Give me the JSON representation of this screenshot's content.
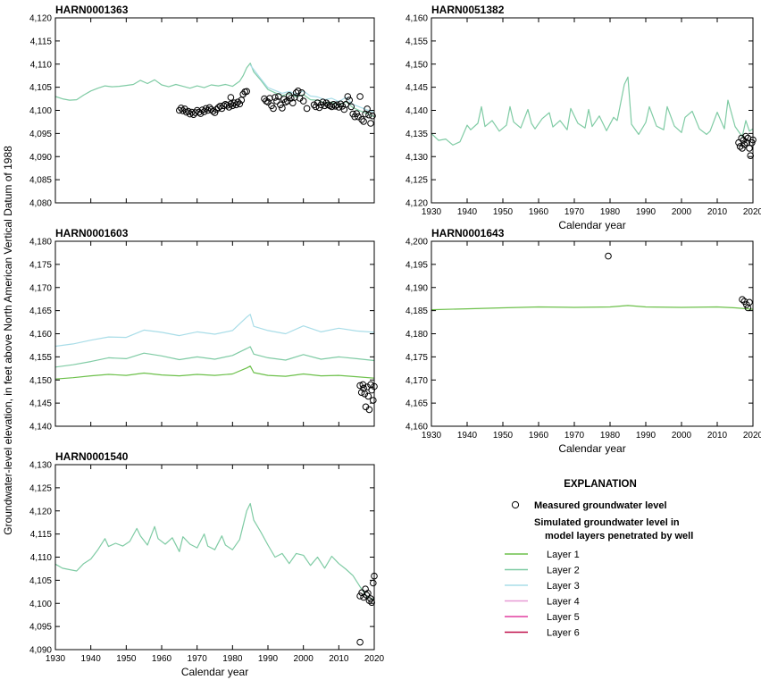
{
  "ylabel": "Groundwater-level elevation, in feet above North American Vertical Datum of 1988",
  "xlabel": "Calendar year",
  "explanation": {
    "title": "EXPLANATION",
    "measured_label": "Measured groundwater level",
    "simulated_label_line1": "Simulated groundwater level in",
    "simulated_label_line2": "model layers penetrated by well",
    "layers": [
      {
        "name": "Layer 1",
        "color": "#6cc04a"
      },
      {
        "name": "Layer 2",
        "color": "#7fcba4"
      },
      {
        "name": "Layer 3",
        "color": "#a9dde8"
      },
      {
        "name": "Layer 4",
        "color": "#e79ad6"
      },
      {
        "name": "Layer 5",
        "color": "#e23fa0"
      },
      {
        "name": "Layer 6",
        "color": "#c0104a"
      }
    ]
  },
  "chart_data": [
    {
      "type": "line",
      "title": "HARN0001363",
      "xlim": [
        1930,
        2020
      ],
      "ylim": [
        4080,
        4120
      ],
      "xticks": [
        1930,
        1940,
        1950,
        1960,
        1970,
        1980,
        1990,
        2000,
        2010,
        2020
      ],
      "yticks": [
        4080,
        4085,
        4090,
        4095,
        4100,
        4105,
        4110,
        4115,
        4120
      ],
      "series": [
        {
          "name": "Layer 2",
          "color": "#7fcba4",
          "x": [
            1930,
            1932,
            1934,
            1936,
            1938,
            1940,
            1942,
            1944,
            1946,
            1948,
            1950,
            1952,
            1954,
            1956,
            1958,
            1960,
            1962,
            1964,
            1966,
            1968,
            1970,
            1972,
            1974,
            1976,
            1978,
            1980,
            1982,
            1983,
            1984,
            1985,
            1986,
            1988,
            1990,
            1992,
            1994,
            1996,
            1998,
            2000,
            2002,
            2004,
            2006,
            2008,
            2010,
            2012,
            2014,
            2016,
            2018,
            2020
          ],
          "y": [
            4103,
            4102.5,
            4102.2,
            4102.3,
            4103.3,
            4104.2,
            4104.8,
            4105.3,
            4105.1,
            4105.2,
            4105.4,
            4105.6,
            4106.5,
            4105.8,
            4106.6,
            4105.5,
            4105.1,
            4105.6,
            4105.2,
            4104.8,
            4105.3,
            4104.9,
            4105.5,
            4105.3,
            4105.6,
            4105.2,
            4106.3,
            4107.5,
            4109.2,
            4110.2,
            4108.3,
            4106.5,
            4104.5,
            4103.8,
            4103.2,
            4103.6,
            4102.9,
            4103.4,
            4102.3,
            4102.2,
            4101.6,
            4101.8,
            4101.1,
            4101.9,
            4100.6,
            4099.9,
            4099.3,
            4098.6
          ]
        },
        {
          "name": "Layer 3",
          "color": "#a9dde8",
          "x": [
            1985,
            1988,
            1990,
            1992,
            1994,
            1996,
            1998,
            2000,
            2002,
            2004,
            2006,
            2008,
            2010,
            2012,
            2014,
            2016,
            2018,
            2020
          ],
          "y": [
            4109.8,
            4106.8,
            4104.9,
            4104.3,
            4103.7,
            4104.1,
            4103.5,
            4104.2,
            4103.1,
            4102.9,
            4102.3,
            4102.6,
            4101.9,
            4102.8,
            4101.3,
            4100.7,
            4100.1,
            4099.6
          ]
        }
      ],
      "measured": {
        "x": [
          1965.0,
          1965.5,
          1966.0,
          1966.5,
          1967.0,
          1967.5,
          1968.0,
          1968.5,
          1969.0,
          1969.5,
          1970.0,
          1970.5,
          1971.0,
          1971.5,
          1972.0,
          1972.5,
          1973.0,
          1973.5,
          1974.0,
          1974.5,
          1975.0,
          1975.5,
          1976.0,
          1976.5,
          1977.0,
          1977.5,
          1978.0,
          1978.5,
          1979.0,
          1979.5,
          1980.0,
          1980.5,
          1981.0,
          1981.5,
          1982.0,
          1982.5,
          1983.0,
          1983.5,
          1984.0,
          1979.5,
          1989.0,
          1989.5,
          1990.0,
          1990.5,
          1991.0,
          1991.5,
          1992.0,
          1992.5,
          1993.0,
          1993.5,
          1994.0,
          1994.5,
          1995.0,
          1995.5,
          1996.0,
          1996.5,
          1997.0,
          1997.5,
          1998.0,
          1998.5,
          1999.0,
          1999.5,
          2000.0,
          2001.0,
          2003.0,
          2003.5,
          2004.0,
          2004.5,
          2005.0,
          2005.5,
          2006.0,
          2006.5,
          2007.0,
          2007.5,
          2008.0,
          2008.5,
          2009.0,
          2009.5,
          2010.0,
          2010.5,
          2011.0,
          2011.5,
          2012.0,
          2012.5,
          2013.0,
          2013.5,
          2014.0,
          2014.5,
          2015.0,
          2015.5,
          2016.0,
          2016.5,
          2017.0,
          2017.5,
          2018.0,
          2018.5,
          2019.0,
          2019.5
        ],
        "y": [
          4100.0,
          4100.5,
          4099.9,
          4100.3,
          4099.6,
          4099.8,
          4099.2,
          4099.6,
          4099.1,
          4099.5,
          4100.0,
          4099.6,
          4099.3,
          4100.1,
          4099.7,
          4100.4,
          4100.0,
          4100.6,
          4100.2,
          4099.8,
          4099.5,
          4100.2,
          4100.6,
          4100.9,
          4100.4,
          4101.0,
          4101.3,
          4101.1,
          4100.7,
          4101.4,
          4101.0,
          4101.6,
          4101.2,
          4101.8,
          4101.4,
          4102.2,
          4103.5,
          4104.0,
          4104.1,
          4102.8,
          4102.5,
          4102.0,
          4101.8,
          4102.6,
          4101.0,
          4100.4,
          4102.8,
          4102.0,
          4103.0,
          4101.2,
          4100.5,
          4102.4,
          4101.8,
          4102.0,
          4103.2,
          4102.6,
          4101.6,
          4102.8,
          4103.8,
          4104.2,
          4102.6,
          4103.8,
          4102.0,
          4100.4,
          4101.2,
          4100.8,
          4101.6,
          4100.6,
          4101.2,
          4101.8,
          4101.0,
          4101.6,
          4101.2,
          4101.0,
          4100.8,
          4101.3,
          4100.9,
          4101.2,
          4100.7,
          4101.4,
          4100.9,
          4100.2,
          4101.3,
          4103.0,
          4102.2,
          4100.8,
          4099.2,
          4098.6,
          4099.3,
          4098.6,
          4103.0,
          4098.0,
          4097.6,
          4099.2,
          4100.3,
          4099.0,
          4097.2,
          4098.8
        ]
      }
    },
    {
      "type": "line",
      "title": "HARN0051382",
      "xlim": [
        1930,
        2020
      ],
      "ylim": [
        4120,
        4160
      ],
      "xticks": [
        1930,
        1940,
        1950,
        1960,
        1970,
        1980,
        1990,
        2000,
        2010,
        2020
      ],
      "yticks": [
        4120,
        4125,
        4130,
        4135,
        4140,
        4145,
        4150,
        4155,
        4160
      ],
      "series": [
        {
          "name": "Layer 2",
          "color": "#7fcba4",
          "x": [
            1930,
            1932,
            1934,
            1936,
            1938,
            1940,
            1941,
            1943,
            1944,
            1945,
            1947,
            1949,
            1951,
            1952,
            1953,
            1955,
            1957,
            1958,
            1959,
            1961,
            1963,
            1964,
            1966,
            1968,
            1969,
            1971,
            1973,
            1974,
            1975,
            1977,
            1979,
            1981,
            1982,
            1984,
            1985,
            1986,
            1988,
            1990,
            1991,
            1993,
            1995,
            1996,
            1998,
            2000,
            2001,
            2003,
            2005,
            2007,
            2008,
            2010,
            2012,
            2013,
            2015,
            2017,
            2018,
            2019,
            2020
          ],
          "y": [
            4135.0,
            4133.5,
            4133.8,
            4132.5,
            4133.2,
            4136.8,
            4135.8,
            4137.2,
            4140.8,
            4136.5,
            4137.8,
            4135.5,
            4136.8,
            4140.8,
            4137.5,
            4136.2,
            4140.2,
            4137.2,
            4136.0,
            4138.2,
            4139.5,
            4136.4,
            4137.8,
            4135.8,
            4140.4,
            4137.2,
            4136.2,
            4140.2,
            4136.5,
            4138.8,
            4135.6,
            4138.5,
            4137.8,
            4145.6,
            4147.2,
            4137.0,
            4134.8,
            4137.4,
            4140.8,
            4136.6,
            4135.8,
            4140.8,
            4136.6,
            4135.2,
            4138.5,
            4139.8,
            4136.0,
            4134.8,
            4135.5,
            4139.6,
            4136.0,
            4142.2,
            4136.5,
            4134.3,
            4137.8,
            4135.5,
            4136.0
          ]
        }
      ],
      "measured": {
        "x": [
          2016.0,
          2016.4,
          2016.8,
          2017.0,
          2017.3,
          2017.6,
          2018.0,
          2018.3,
          2018.6,
          2019.0,
          2019.3,
          2019.7,
          2020.0
        ],
        "y": [
          4133.0,
          4132.2,
          4134.0,
          4131.8,
          4133.5,
          4132.6,
          4134.4,
          4133.0,
          4134.0,
          4131.8,
          4130.2,
          4133.0,
          4133.6
        ]
      }
    },
    {
      "type": "line",
      "title": "HARN0001603",
      "xlim": [
        1930,
        2020
      ],
      "ylim": [
        4140,
        4180
      ],
      "xticks": [
        1930,
        1940,
        1950,
        1960,
        1970,
        1980,
        1990,
        2000,
        2010,
        2020
      ],
      "yticks": [
        4140,
        4145,
        4150,
        4155,
        4160,
        4165,
        4170,
        4175,
        4180
      ],
      "series": [
        {
          "name": "Layer 1",
          "color": "#6cc04a",
          "x": [
            1930,
            1935,
            1940,
            1945,
            1950,
            1955,
            1960,
            1965,
            1970,
            1975,
            1980,
            1984,
            1985,
            1986,
            1990,
            1995,
            2000,
            2005,
            2010,
            2015,
            2020
          ],
          "y": [
            4150.2,
            4150.5,
            4150.9,
            4151.2,
            4151.0,
            4151.5,
            4151.1,
            4150.9,
            4151.2,
            4151.0,
            4151.3,
            4152.6,
            4153.0,
            4151.6,
            4151.0,
            4150.8,
            4151.3,
            4150.9,
            4151.0,
            4150.7,
            4150.4
          ]
        },
        {
          "name": "Layer 2",
          "color": "#7fcba4",
          "x": [
            1930,
            1935,
            1940,
            1945,
            1950,
            1955,
            1960,
            1965,
            1970,
            1975,
            1980,
            1984,
            1985,
            1986,
            1990,
            1995,
            2000,
            2005,
            2010,
            2015,
            2020
          ],
          "y": [
            4152.8,
            4153.3,
            4154.0,
            4154.8,
            4154.6,
            4155.8,
            4155.2,
            4154.4,
            4155.0,
            4154.5,
            4155.3,
            4156.8,
            4157.2,
            4155.6,
            4154.8,
            4154.3,
            4155.5,
            4154.5,
            4155.0,
            4154.6,
            4154.2
          ]
        },
        {
          "name": "Layer 3",
          "color": "#a9dde8",
          "x": [
            1930,
            1935,
            1940,
            1945,
            1950,
            1955,
            1960,
            1965,
            1970,
            1975,
            1980,
            1984,
            1985,
            1986,
            1990,
            1995,
            2000,
            2005,
            2010,
            2015,
            2020
          ],
          "y": [
            4157.3,
            4157.8,
            4158.6,
            4159.3,
            4159.2,
            4160.8,
            4160.3,
            4159.6,
            4160.4,
            4159.9,
            4160.7,
            4163.6,
            4164.2,
            4161.6,
            4160.7,
            4160.0,
            4161.7,
            4160.4,
            4161.2,
            4160.6,
            4160.3
          ]
        }
      ],
      "measured": {
        "x": [
          2016.0,
          2016.4,
          2016.8,
          2017.0,
          2017.3,
          2017.6,
          2018.0,
          2018.3,
          2018.6,
          2019.0,
          2019.3,
          2019.7,
          2020.0
        ],
        "y": [
          4148.8,
          4147.3,
          4149.0,
          4148.2,
          4147.0,
          4144.2,
          4148.5,
          4146.5,
          4143.6,
          4149.0,
          4147.8,
          4145.6,
          4148.6
        ]
      }
    },
    {
      "type": "line",
      "title": "HARN0001643",
      "xlim": [
        1930,
        2020
      ],
      "ylim": [
        4160,
        4200
      ],
      "xticks": [
        1930,
        1940,
        1950,
        1960,
        1970,
        1980,
        1990,
        2000,
        2010,
        2020
      ],
      "yticks": [
        4160,
        4165,
        4170,
        4175,
        4180,
        4185,
        4190,
        4195,
        4200
      ],
      "series": [
        {
          "name": "Layer 1",
          "color": "#6cc04a",
          "x": [
            1930,
            1940,
            1950,
            1960,
            1970,
            1980,
            1985,
            1990,
            2000,
            2010,
            2015,
            2020
          ],
          "y": [
            4185.2,
            4185.4,
            4185.6,
            4185.8,
            4185.7,
            4185.8,
            4186.1,
            4185.8,
            4185.7,
            4185.8,
            4185.6,
            4185.3
          ]
        }
      ],
      "measured": {
        "x": [
          1979.5,
          2017.0,
          2017.6,
          2018.2,
          2018.6,
          2019.0
        ],
        "y": [
          4196.8,
          4187.4,
          4187.0,
          4186.3,
          4185.6,
          4186.8
        ]
      }
    },
    {
      "type": "line",
      "title": "HARN0001540",
      "xlim": [
        1930,
        2020
      ],
      "ylim": [
        4090,
        4130
      ],
      "xticks": [
        1930,
        1940,
        1950,
        1960,
        1970,
        1980,
        1990,
        2000,
        2010,
        2020
      ],
      "yticks": [
        4090,
        4095,
        4100,
        4105,
        4110,
        4115,
        4120,
        4125,
        4130
      ],
      "series": [
        {
          "name": "Layer 2",
          "color": "#7fcba4",
          "x": [
            1930,
            1932,
            1934,
            1936,
            1938,
            1940,
            1942,
            1944,
            1945,
            1947,
            1949,
            1951,
            1953,
            1954,
            1956,
            1958,
            1959,
            1961,
            1963,
            1965,
            1966,
            1968,
            1970,
            1972,
            1973,
            1975,
            1977,
            1978,
            1980,
            1982,
            1984,
            1985,
            1986,
            1988,
            1990,
            1992,
            1994,
            1996,
            1998,
            2000,
            2002,
            2004,
            2006,
            2008,
            2010,
            2012,
            2014,
            2016,
            2018,
            2020
          ],
          "y": [
            4108.5,
            4107.6,
            4107.3,
            4107.0,
            4108.6,
            4109.6,
            4111.6,
            4114.0,
            4112.3,
            4113.0,
            4112.4,
            4113.4,
            4116.2,
            4114.6,
            4112.6,
            4116.6,
            4114.0,
            4112.8,
            4114.2,
            4111.2,
            4114.4,
            4112.8,
            4112.0,
            4115.0,
            4112.4,
            4111.6,
            4114.6,
            4112.6,
            4111.6,
            4113.8,
            4120.0,
            4121.6,
            4118.0,
            4115.4,
            4112.6,
            4110.0,
            4110.8,
            4108.6,
            4110.8,
            4110.4,
            4108.2,
            4110.0,
            4107.6,
            4110.2,
            4108.6,
            4107.4,
            4106.0,
            4103.6,
            4101.4,
            4100.8
          ]
        }
      ],
      "measured": {
        "x": [
          2016.0,
          2016.5,
          2017.0,
          2017.5,
          2017.8,
          2018.2,
          2018.6,
          2019.0,
          2019.3,
          2019.7,
          2020.0,
          2016.0
        ],
        "y": [
          4101.6,
          4102.3,
          4101.3,
          4103.1,
          4101.8,
          4102.2,
          4100.6,
          4101.0,
          4100.2,
          4104.4,
          4105.9,
          4091.6
        ]
      }
    }
  ]
}
